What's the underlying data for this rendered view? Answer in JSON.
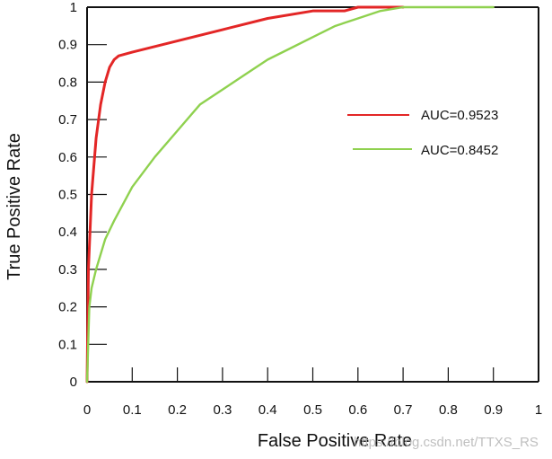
{
  "chart_data": {
    "type": "line",
    "xlabel": "False Positive Rate",
    "ylabel": "True Positive Rate",
    "xlim": [
      0,
      1
    ],
    "ylim": [
      0,
      1
    ],
    "grid": false,
    "legend_position": "right-middle",
    "x_ticks": [
      {
        "value": 0,
        "label": "0"
      },
      {
        "value": 0.1,
        "label": "0.1"
      },
      {
        "value": 0.2,
        "label": "0.2"
      },
      {
        "value": 0.3,
        "label": "0.3"
      },
      {
        "value": 0.4,
        "label": "0.4"
      },
      {
        "value": 0.5,
        "label": "0.5"
      },
      {
        "value": 0.6,
        "label": "0.6"
      },
      {
        "value": 0.7,
        "label": "0.7"
      },
      {
        "value": 0.8,
        "label": "0.8"
      },
      {
        "value": 0.9,
        "label": "0.9"
      },
      {
        "value": 1,
        "label": "1"
      }
    ],
    "y_ticks": [
      {
        "value": 0,
        "label": "0"
      },
      {
        "value": 0.1,
        "label": "0.1"
      },
      {
        "value": 0.2,
        "label": "0.2"
      },
      {
        "value": 0.3,
        "label": "0.3"
      },
      {
        "value": 0.4,
        "label": "0.4"
      },
      {
        "value": 0.5,
        "label": "0.5"
      },
      {
        "value": 0.6,
        "label": "0.6"
      },
      {
        "value": 0.7,
        "label": "0.7"
      },
      {
        "value": 0.8,
        "label": "0.8"
      },
      {
        "value": 0.9,
        "label": "0.9"
      },
      {
        "value": 1,
        "label": "1"
      }
    ],
    "series": [
      {
        "name": "AUC=0.9523",
        "color": "#e32626",
        "x": [
          0,
          0.003,
          0.01,
          0.02,
          0.03,
          0.04,
          0.05,
          0.06,
          0.07,
          0.1,
          0.15,
          0.2,
          0.3,
          0.4,
          0.5,
          0.53,
          0.57,
          0.6,
          0.65,
          0.7
        ],
        "y": [
          0,
          0.3,
          0.5,
          0.65,
          0.74,
          0.8,
          0.84,
          0.86,
          0.87,
          0.88,
          0.895,
          0.91,
          0.94,
          0.97,
          0.99,
          0.99,
          0.99,
          1,
          1,
          1
        ]
      },
      {
        "name": "AUC=0.8452",
        "color": "#8fd14f",
        "x": [
          0,
          0.005,
          0.01,
          0.02,
          0.04,
          0.06,
          0.1,
          0.15,
          0.2,
          0.25,
          0.3,
          0.35,
          0.4,
          0.45,
          0.5,
          0.55,
          0.6,
          0.65,
          0.7,
          0.8,
          0.9
        ],
        "y": [
          0,
          0.2,
          0.25,
          0.3,
          0.38,
          0.43,
          0.52,
          0.6,
          0.67,
          0.74,
          0.78,
          0.82,
          0.86,
          0.89,
          0.92,
          0.95,
          0.97,
          0.99,
          1,
          1,
          1
        ]
      }
    ],
    "annotations": [
      {
        "text": "https://blog.csdn.net/TTXS_RS",
        "type": "watermark"
      }
    ]
  }
}
